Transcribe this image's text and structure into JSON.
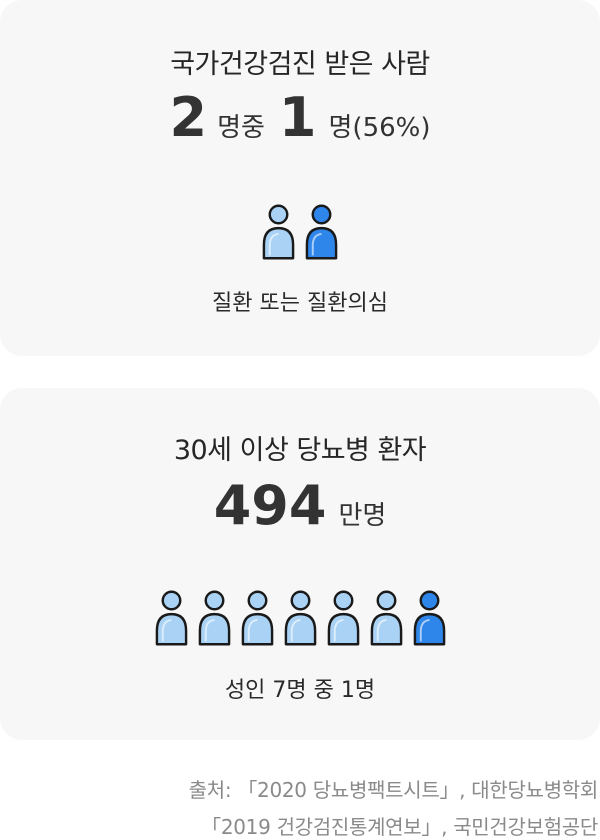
{
  "card1": {
    "title": "국가건강검진 받은 사람",
    "num1": "2",
    "unit1": "명중",
    "num2": "1",
    "unit2": "명(56%)",
    "people_total": 2,
    "people_highlighted": 1,
    "caption": "질환 또는 질환의심"
  },
  "card2": {
    "title": "30세 이상 당뇨병 환자",
    "number": "494",
    "unit": "만명",
    "people_total": 7,
    "people_highlighted": 1,
    "caption": "성인 7명 중 1명"
  },
  "source": {
    "line1": "출처: 「2020 당뇨병팩트시트」, 대한당뇨병학회",
    "line2": "「2019 건강검진통계연보」, 국민건강보험공단"
  },
  "colors": {
    "card_bg": "#f7f7f7",
    "person_light": "#a9d2f5",
    "person_highlight": "#2f86ea",
    "outline": "#1a1a1a"
  },
  "icons": [
    "person-icon"
  ]
}
